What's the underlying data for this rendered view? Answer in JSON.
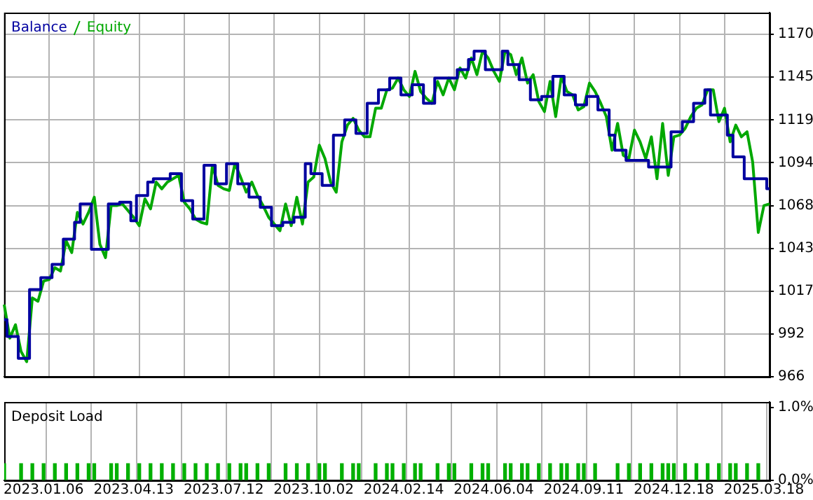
{
  "chart_data": [
    {
      "type": "line",
      "legend": "top left",
      "grid": true,
      "tick_labels": "y",
      "categories": [
        null,
        null,
        null,
        null,
        null,
        null,
        null,
        "2023.01.06",
        null,
        null,
        null,
        null,
        null,
        null,
        null,
        null,
        null,
        null,
        null,
        null,
        null,
        null,
        null,
        "2023.04.13",
        null,
        null,
        null,
        null,
        null,
        null,
        null,
        null,
        null,
        null,
        null,
        null,
        null,
        null,
        null,
        "2023.07.12",
        null,
        null,
        null,
        null,
        null,
        null,
        null,
        null,
        null,
        null,
        null,
        null,
        null,
        null,
        null,
        "2023.10.02",
        null,
        null,
        null,
        null,
        null,
        null,
        null,
        null,
        null,
        null,
        null,
        null,
        null,
        null,
        null,
        "2024.02.14",
        null,
        null,
        null,
        null,
        null,
        null,
        null,
        null,
        null,
        null,
        null,
        null,
        null,
        null,
        null,
        "2024.06.04",
        null,
        null,
        null,
        null,
        null,
        null,
        null,
        null,
        null,
        null,
        null,
        null,
        null,
        null,
        null,
        "2024.09.11",
        null,
        null,
        null,
        null,
        null,
        null,
        null,
        null,
        null,
        null,
        null,
        null,
        null,
        null,
        null,
        "2024.12.18",
        null,
        null,
        null,
        null,
        null,
        null,
        null,
        null,
        null,
        null,
        null,
        null,
        null,
        null,
        null,
        "2025.03.18",
        null
      ],
      "ylim": [
        966,
        1183
      ],
      "yticks": [
        966,
        {
          "value": 991.5,
          "label": "992"
        },
        1017,
        {
          "value": 1042.5,
          "label": "1043"
        },
        1068,
        {
          "value": 1093.5,
          "label": "1094"
        },
        1119,
        {
          "value": 1144.5,
          "label": "1145"
        },
        1170
      ],
      "series": [
        {
          "name": "Balance",
          "type": "step",
          "color": "#0000a0",
          "values": [
            1000,
            990,
            990,
            977,
            977,
            1018,
            1018,
            1025,
            1025,
            1033,
            1033,
            1048,
            1048,
            1058,
            1069,
            1069,
            1042,
            1042,
            1042,
            1069,
            1069,
            1070,
            1070,
            1059,
            1074,
            1074,
            1082,
            1084,
            1084,
            1084,
            1087,
            1087,
            1071,
            1071,
            1060,
            1060,
            1092,
            1092,
            1081,
            1081,
            1093,
            1093,
            1081,
            1081,
            1073,
            1073,
            1067,
            1067,
            1056,
            1056,
            1058,
            1058,
            1061,
            1061,
            1093,
            1087,
            1087,
            1080,
            1080,
            1110,
            1110,
            1119,
            1119,
            1111,
            1111,
            1129,
            1129,
            1137,
            1137,
            1144,
            1144,
            1134,
            1134,
            1140,
            1140,
            1129,
            1129,
            1144,
            1144,
            1144,
            1144,
            1149,
            1149,
            1155,
            1160,
            1160,
            1149,
            1149,
            1149,
            1160,
            1152,
            1152,
            1143,
            1143,
            1131,
            1131,
            1133,
            1133,
            1145,
            1145,
            1134,
            1134,
            1128,
            1128,
            1133,
            1133,
            1125,
            1125,
            1110,
            1101,
            1101,
            1095,
            1095,
            1095,
            1095,
            1091,
            1091,
            1091,
            1091,
            1112,
            1112,
            1118,
            1118,
            1129,
            1129,
            1137,
            1122,
            1122,
            1122,
            1110,
            1097,
            1097,
            1084,
            1084,
            1084,
            1084,
            1078
          ]
        },
        {
          "name": "Equity",
          "color": "#00a800",
          "values": [
            1009,
            989,
            997,
            981,
            975,
            1013,
            1011,
            1023,
            1024,
            1031,
            1029,
            1047,
            1040,
            1064,
            1057,
            1064,
            1073,
            1045,
            1037,
            1068,
            1068,
            1069,
            1065,
            1061,
            1056,
            1072,
            1066,
            1082,
            1078,
            1082,
            1084,
            1086,
            1070,
            1066,
            1060,
            1058,
            1057,
            1092,
            1080,
            1078,
            1077,
            1093,
            1085,
            1076,
            1082,
            1074,
            1068,
            1061,
            1057,
            1053,
            1069,
            1056,
            1073,
            1057,
            1082,
            1085,
            1104,
            1096,
            1082,
            1076,
            1106,
            1116,
            1120,
            1113,
            1109,
            1109,
            1126,
            1126,
            1137,
            1138,
            1144,
            1137,
            1133,
            1148,
            1136,
            1132,
            1129,
            1142,
            1134,
            1144,
            1137,
            1150,
            1144,
            1156,
            1146,
            1160,
            1156,
            1148,
            1142,
            1160,
            1158,
            1146,
            1156,
            1141,
            1146,
            1130,
            1124,
            1142,
            1121,
            1145,
            1136,
            1134,
            1125,
            1127,
            1141,
            1136,
            1129,
            1121,
            1101,
            1117,
            1098,
            1096,
            1113,
            1106,
            1096,
            1109,
            1084,
            1117,
            1086,
            1109,
            1110,
            1114,
            1121,
            1126,
            1128,
            1137,
            1137,
            1118,
            1126,
            1106,
            1116,
            1109,
            1112,
            1094,
            1052,
            1068,
            1069
          ]
        }
      ]
    },
    {
      "type": "bar",
      "title": "Deposit Load",
      "color": "#00b000",
      "grid": "x",
      "categories": [
        null,
        null,
        null,
        null,
        null,
        null,
        null,
        "2023.01.06",
        null,
        null,
        null,
        null,
        null,
        null,
        null,
        null,
        null,
        null,
        null,
        null,
        null,
        null,
        null,
        "2023.04.13",
        null,
        null,
        null,
        null,
        null,
        null,
        null,
        null,
        null,
        null,
        null,
        null,
        null,
        null,
        null,
        "2023.07.12",
        null,
        null,
        null,
        null,
        null,
        null,
        null,
        null,
        null,
        null,
        null,
        null,
        null,
        null,
        null,
        "2023.10.02",
        null,
        null,
        null,
        null,
        null,
        null,
        null,
        null,
        null,
        null,
        null,
        null,
        null,
        null,
        null,
        "2024.02.14",
        null,
        null,
        null,
        null,
        null,
        null,
        null,
        null,
        null,
        null,
        null,
        null,
        null,
        null,
        null,
        "2024.06.04",
        null,
        null,
        null,
        null,
        null,
        null,
        null,
        null,
        null,
        null,
        null,
        null,
        null,
        null,
        null,
        "2024.09.11",
        null,
        null,
        null,
        null,
        null,
        null,
        null,
        null,
        null,
        null,
        null,
        null,
        null,
        null,
        null,
        "2024.12.18",
        null,
        null,
        null,
        null,
        null,
        null,
        null,
        null,
        null,
        null,
        null,
        null,
        null,
        null,
        null,
        "2025.03.18",
        null
      ],
      "ylim": [
        0,
        1.08
      ],
      "yticks": [
        {
          "value": 0,
          "label": "0.0%"
        },
        {
          "value": 1,
          "label": "1.0%"
        }
      ],
      "values": [
        0.23,
        null,
        null,
        0.23,
        null,
        0.23,
        null,
        0.23,
        null,
        0.23,
        null,
        0.23,
        null,
        0.23,
        null,
        0.23,
        0.23,
        null,
        null,
        0.23,
        0.23,
        null,
        0.23,
        null,
        0.23,
        null,
        0.23,
        null,
        0.23,
        null,
        0.23,
        null,
        0.23,
        null,
        0.23,
        null,
        0.23,
        null,
        0.23,
        null,
        0.23,
        null,
        0.23,
        0.23,
        null,
        0.23,
        null,
        0.23,
        null,
        null,
        0.23,
        null,
        0.23,
        null,
        0.23,
        null,
        0.23,
        0.23,
        null,
        null,
        0.23,
        null,
        0.23,
        0.23,
        null,
        null,
        0.23,
        null,
        0.23,
        0.23,
        null,
        0.23,
        null,
        0.23,
        0.23,
        null,
        null,
        0.23,
        null,
        0.23,
        0.23,
        null,
        null,
        0.23,
        null,
        0.23,
        0.23,
        null,
        null,
        0.23,
        0.23,
        null,
        0.23,
        0.23,
        null,
        0.23,
        null,
        0.23,
        null,
        0.23,
        0.23,
        null,
        0.23,
        0.23,
        null,
        0.23,
        null,
        null,
        null,
        0.23,
        null,
        0.23,
        null,
        0.23,
        null,
        0.23,
        null,
        0.23,
        0.23,
        0.23,
        null,
        0.23,
        null,
        0.23,
        null,
        0.23,
        null,
        0.23,
        null,
        0.23,
        0.23,
        null,
        0.23,
        null,
        0.23,
        null,
        null
      ]
    }
  ]
}
